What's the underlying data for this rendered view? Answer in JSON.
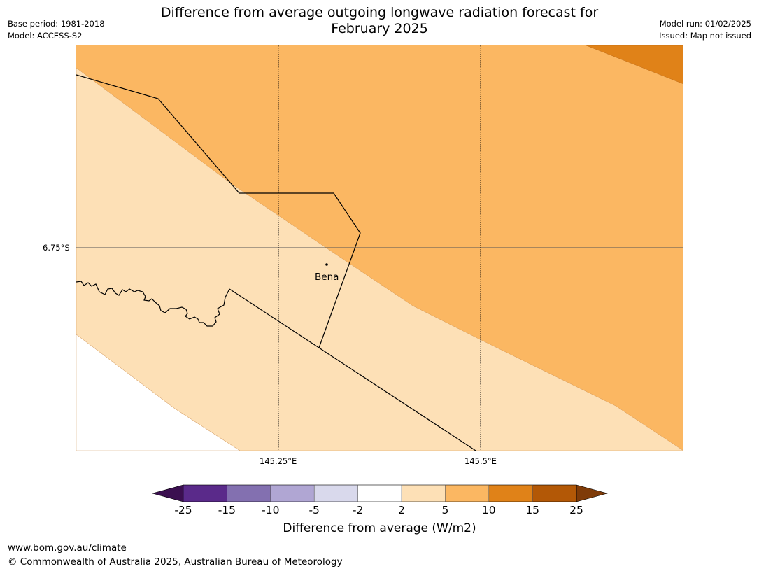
{
  "header": {
    "title_line1": "Difference from average outgoing longwave radiation forecast for",
    "title_line2": "February 2025",
    "base_period": "Base period: 1981-2018",
    "model": "Model: ACCESS-S2",
    "model_run": "Model run: 01/02/2025",
    "issued": "Issued: Map not issued"
  },
  "map": {
    "lat_label": "6.75°S",
    "lon_labels": [
      "145.25°E",
      "145.5°E"
    ],
    "place": "Bena",
    "fill_colors": {
      "band_2_5": "#fde0b6",
      "band_5_10": "#fbb762",
      "band_10_15": "#e08218"
    }
  },
  "colorbar": {
    "ticks": [
      "-25",
      "-15",
      "-10",
      "-5",
      "-2",
      "2",
      "5",
      "10",
      "15",
      "25"
    ],
    "colors": [
      "#3b0f50",
      "#5a2a8a",
      "#8370b0",
      "#b0a6d3",
      "#d9d9ec",
      "#ffffff",
      "#fde0b6",
      "#fbb762",
      "#e08218",
      "#b35806",
      "#7f3b08"
    ],
    "label": "Difference from average (W/m2)"
  },
  "footer": {
    "url": "www.bom.gov.au/climate",
    "copyright": "© Commonwealth of Australia 2025, Australian Bureau of Meteorology"
  }
}
